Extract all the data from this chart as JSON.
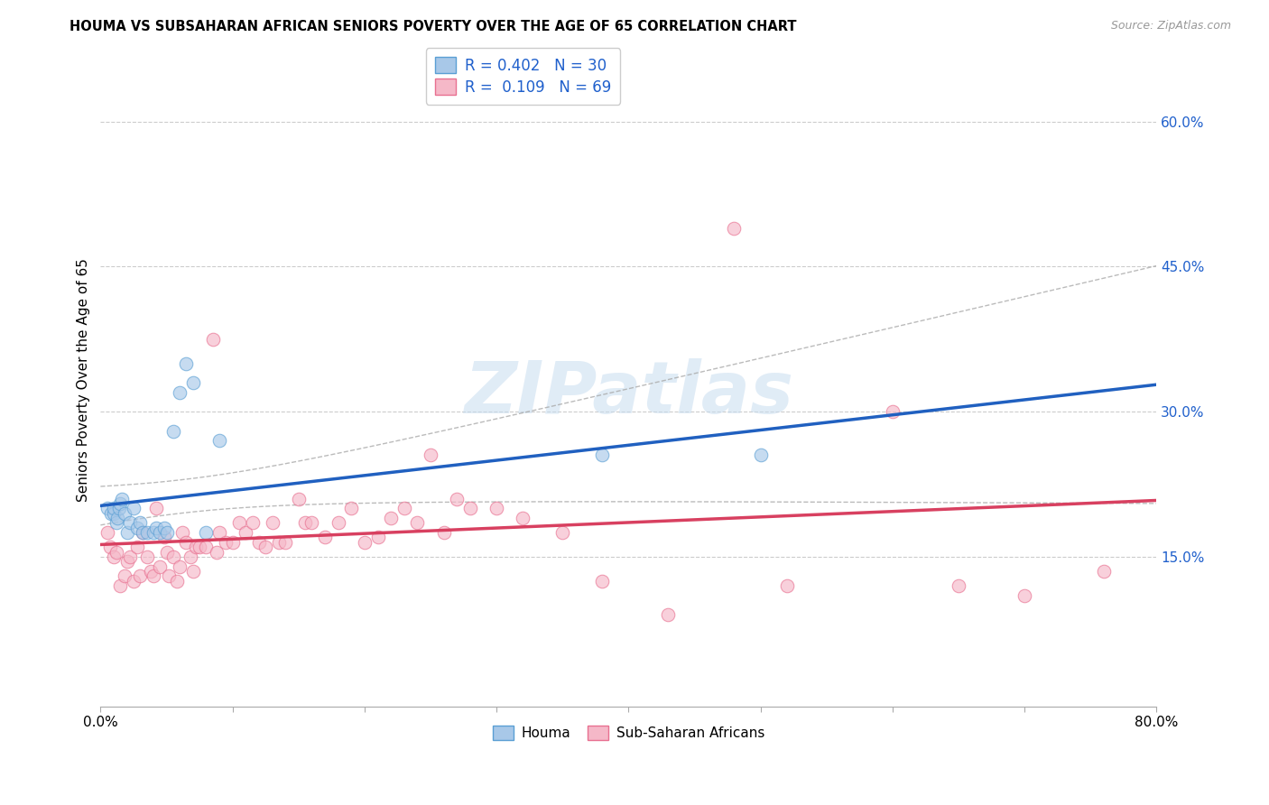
{
  "title": "HOUMA VS SUBSAHARAN AFRICAN SENIORS POVERTY OVER THE AGE OF 65 CORRELATION CHART",
  "source": "Source: ZipAtlas.com",
  "ylabel": "Seniors Poverty Over the Age of 65",
  "xlim": [
    0.0,
    0.8
  ],
  "ylim": [
    -0.005,
    0.67
  ],
  "yticks_right": [
    0.15,
    0.3,
    0.45,
    0.6
  ],
  "ytick_labels_right": [
    "15.0%",
    "30.0%",
    "45.0%",
    "60.0%"
  ],
  "houma_color": "#a8c8e8",
  "houma_edge_color": "#5a9fd4",
  "ssa_color": "#f5b8c8",
  "ssa_edge_color": "#e87090",
  "houma_line_color": "#2060c0",
  "ssa_line_color": "#d84060",
  "ci_color": "#aaaaaa",
  "watermark_color": "#c8ddf0",
  "watermark_text": "ZIPatlas",
  "legend_color": "#2060cc",
  "legend_R_houma": "0.402",
  "legend_N_houma": "30",
  "legend_R_ssa": "0.109",
  "legend_N_ssa": "69",
  "houma_x": [
    0.005,
    0.008,
    0.01,
    0.01,
    0.012,
    0.013,
    0.014,
    0.015,
    0.016,
    0.018,
    0.02,
    0.022,
    0.025,
    0.028,
    0.03,
    0.032,
    0.035,
    0.04,
    0.042,
    0.045,
    0.048,
    0.05,
    0.055,
    0.06,
    0.065,
    0.07,
    0.08,
    0.09,
    0.38,
    0.5
  ],
  "houma_y": [
    0.2,
    0.195,
    0.195,
    0.2,
    0.185,
    0.19,
    0.2,
    0.205,
    0.21,
    0.195,
    0.175,
    0.185,
    0.2,
    0.18,
    0.185,
    0.175,
    0.175,
    0.175,
    0.18,
    0.175,
    0.18,
    0.175,
    0.28,
    0.32,
    0.35,
    0.33,
    0.175,
    0.27,
    0.255,
    0.255
  ],
  "ssa_x": [
    0.005,
    0.007,
    0.01,
    0.012,
    0.015,
    0.018,
    0.02,
    0.022,
    0.025,
    0.028,
    0.03,
    0.032,
    0.035,
    0.038,
    0.04,
    0.042,
    0.045,
    0.048,
    0.05,
    0.052,
    0.055,
    0.058,
    0.06,
    0.062,
    0.065,
    0.068,
    0.07,
    0.072,
    0.075,
    0.08,
    0.085,
    0.088,
    0.09,
    0.095,
    0.1,
    0.105,
    0.11,
    0.115,
    0.12,
    0.125,
    0.13,
    0.135,
    0.14,
    0.15,
    0.155,
    0.16,
    0.17,
    0.18,
    0.19,
    0.2,
    0.21,
    0.22,
    0.23,
    0.24,
    0.25,
    0.26,
    0.27,
    0.28,
    0.3,
    0.32,
    0.35,
    0.38,
    0.43,
    0.48,
    0.52,
    0.6,
    0.65,
    0.7,
    0.76
  ],
  "ssa_y": [
    0.175,
    0.16,
    0.15,
    0.155,
    0.12,
    0.13,
    0.145,
    0.15,
    0.125,
    0.16,
    0.13,
    0.175,
    0.15,
    0.135,
    0.13,
    0.2,
    0.14,
    0.17,
    0.155,
    0.13,
    0.15,
    0.125,
    0.14,
    0.175,
    0.165,
    0.15,
    0.135,
    0.16,
    0.16,
    0.16,
    0.375,
    0.155,
    0.175,
    0.165,
    0.165,
    0.185,
    0.175,
    0.185,
    0.165,
    0.16,
    0.185,
    0.165,
    0.165,
    0.21,
    0.185,
    0.185,
    0.17,
    0.185,
    0.2,
    0.165,
    0.17,
    0.19,
    0.2,
    0.185,
    0.255,
    0.175,
    0.21,
    0.2,
    0.2,
    0.19,
    0.175,
    0.125,
    0.09,
    0.49,
    0.12,
    0.3,
    0.12,
    0.11,
    0.135
  ],
  "marker_size": 110,
  "alpha": 0.65,
  "grid_color": "#cccccc",
  "bg_color": "#ffffff"
}
